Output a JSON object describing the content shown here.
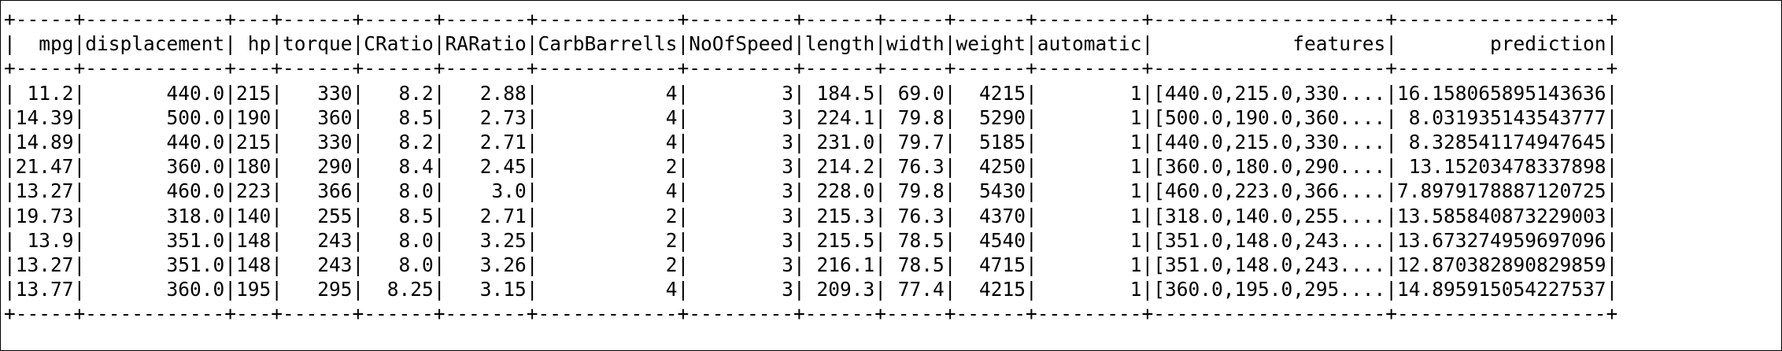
{
  "table": {
    "border": "+-----+------------+---+------+------+-------+------------+---------+------+-----+------+---------+--------------------+------------------+",
    "header": "|  mpg|displacement| hp|torque|CRatio|RARatio|CarbBarrells|NoOfSpeed|length|width|weight|automatic|            features|        prediction|",
    "rows": [
      "| 11.2|       440.0|215|   330|   8.2|   2.88|           4|        3| 184.5| 69.0|  4215|        1|[440.0,215.0,330....|16.158065895143636|",
      "|14.39|       500.0|190|   360|   8.5|   2.73|           4|        3| 224.1| 79.8|  5290|        1|[500.0,190.0,360....| 8.031935143543777|",
      "|14.89|       440.0|215|   330|   8.2|   2.71|           4|        3| 231.0| 79.7|  5185|        1|[440.0,215.0,330....| 8.328541174947645|",
      "|21.47|       360.0|180|   290|   8.4|   2.45|           2|        3| 214.2| 76.3|  4250|        1|[360.0,180.0,290....| 13.15203478337898|",
      "|13.27|       460.0|223|   366|   8.0|    3.0|           4|        3| 228.0| 79.8|  5430|        1|[460.0,223.0,366....|7.8979178887120725|",
      "|19.73|       318.0|140|   255|   8.5|   2.71|           2|        3| 215.3| 76.3|  4370|        1|[318.0,140.0,255....|13.585840873229003|",
      "| 13.9|       351.0|148|   243|   8.0|   3.25|           2|        3| 215.5| 78.5|  4540|        1|[351.0,148.0,243....|13.673274959697096|",
      "|13.27|       351.0|148|   243|   8.0|   3.26|           2|        3| 216.1| 78.5|  4715|        1|[351.0,148.0,243....|12.870382890829859|",
      "|13.77|       360.0|195|   295|  8.25|   3.15|           4|        3| 209.3| 77.4|  4215|        1|[360.0,195.0,295....|14.895915054227537|"
    ]
  }
}
